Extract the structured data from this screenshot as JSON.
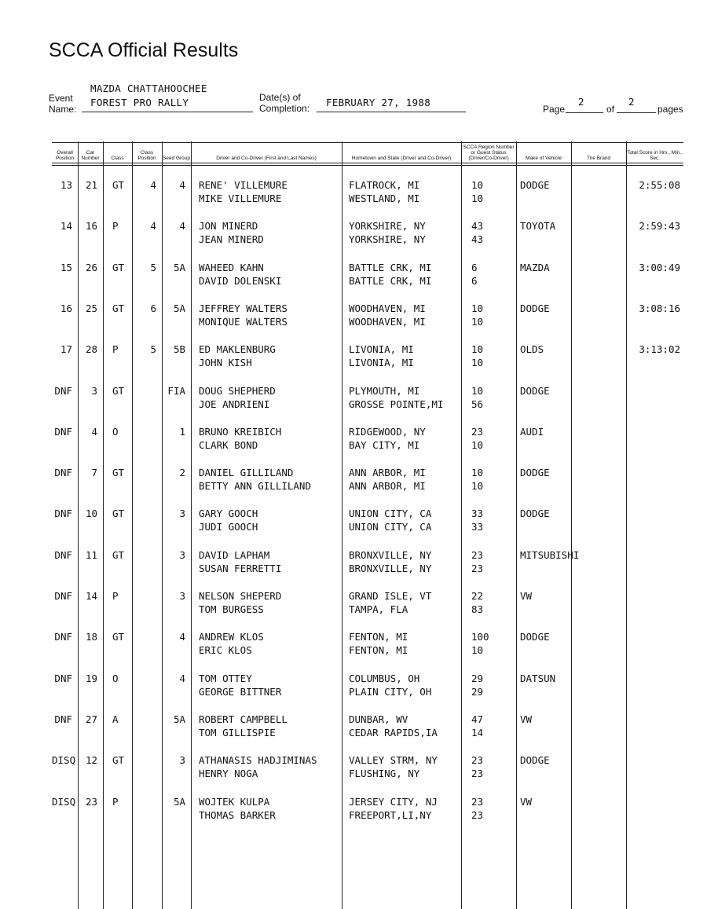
{
  "title": "SCCA Official Results",
  "event": {
    "name_label_1": "Event",
    "name_label_2": "Name:",
    "name_line1": "MAZDA CHATTAHOOCHEE",
    "name_line2": "FOREST PRO RALLY",
    "date_label_1": "Date(s) of",
    "date_label_2": "Completion:",
    "date": "FEBRUARY 27, 1988",
    "page_label": "Page",
    "of_label": "of",
    "pages_label": "pages",
    "page": "2",
    "total_pages": "2"
  },
  "columns": [
    "Overall Position",
    "Car Number",
    "Class",
    "Class Position",
    "Seed Group",
    "Driver and Co-Driver (First and Last Names)",
    "Hometown and State (Driver and Co-Driver)",
    "SCCA Region Number or Guest Status (Driver/Co-Driver)",
    "Make of Vehicle",
    "Tire Brand",
    "Total Score in Hrs., Min., Sec."
  ],
  "rows": [
    {
      "pos": "13",
      "car": "21",
      "cls": "GT",
      "cpos": "4",
      "seed": "4",
      "d1": "RENE' VILLEMURE",
      "d2": "MIKE VILLEMURE",
      "h1": "FLATROCK, MI",
      "h2": "WESTLAND, MI",
      "r1": "10",
      "r2": "10",
      "make": "DODGE",
      "tire": "",
      "score": "2:55:08"
    },
    {
      "pos": "14",
      "car": "16",
      "cls": "P",
      "cpos": "4",
      "seed": "4",
      "d1": "JON MINERD",
      "d2": "JEAN MINERD",
      "h1": "YORKSHIRE, NY",
      "h2": "YORKSHIRE, NY",
      "r1": "43",
      "r2": "43",
      "make": "TOYOTA",
      "tire": "",
      "score": "2:59:43"
    },
    {
      "pos": "15",
      "car": "26",
      "cls": "GT",
      "cpos": "5",
      "seed": "5A",
      "d1": "WAHEED KAHN",
      "d2": "DAVID DOLENSKI",
      "h1": "BATTLE CRK, MI",
      "h2": "BATTLE CRK, MI",
      "r1": "6",
      "r2": "6",
      "make": "MAZDA",
      "tire": "",
      "score": "3:00:49"
    },
    {
      "pos": "16",
      "car": "25",
      "cls": "GT",
      "cpos": "6",
      "seed": "5A",
      "d1": "JEFFREY WALTERS",
      "d2": "MONIQUE WALTERS",
      "h1": "WOODHAVEN, MI",
      "h2": "WOODHAVEN, MI",
      "r1": "10",
      "r2": "10",
      "make": "DODGE",
      "tire": "",
      "score": "3:08:16"
    },
    {
      "pos": "17",
      "car": "28",
      "cls": "P",
      "cpos": "5",
      "seed": "5B",
      "d1": "ED MAKLENBURG",
      "d2": "JOHN KISH",
      "h1": "LIVONIA, MI",
      "h2": "LIVONIA, MI",
      "r1": "10",
      "r2": "10",
      "make": "OLDS",
      "tire": "",
      "score": "3:13:02"
    },
    {
      "pos": "DNF",
      "car": "3",
      "cls": "GT",
      "cpos": "",
      "seed": "FIA",
      "d1": "DOUG SHEPHERD",
      "d2": "JOE ANDRIENI",
      "h1": "PLYMOUTH, MI",
      "h2": "GROSSE POINTE,MI",
      "r1": "10",
      "r2": "56",
      "make": "DODGE",
      "tire": "",
      "score": ""
    },
    {
      "pos": "DNF",
      "car": "4",
      "cls": "O",
      "cpos": "",
      "seed": "1",
      "d1": "BRUNO KREIBICH",
      "d2": "CLARK BOND",
      "h1": "RIDGEWOOD, NY",
      "h2": "BAY CITY, MI",
      "r1": "23",
      "r2": "10",
      "make": "AUDI",
      "tire": "",
      "score": ""
    },
    {
      "pos": "DNF",
      "car": "7",
      "cls": "GT",
      "cpos": "",
      "seed": "2",
      "d1": "DANIEL GILLILAND",
      "d2": "BETTY ANN GILLILAND",
      "h1": "ANN ARBOR, MI",
      "h2": "ANN ARBOR, MI",
      "r1": "10",
      "r2": "10",
      "make": "DODGE",
      "tire": "",
      "score": ""
    },
    {
      "pos": "DNF",
      "car": "10",
      "cls": "GT",
      "cpos": "",
      "seed": "3",
      "d1": "GARY GOOCH",
      "d2": "JUDI GOOCH",
      "h1": "UNION CITY, CA",
      "h2": "UNION CITY, CA",
      "r1": "33",
      "r2": "33",
      "make": "DODGE",
      "tire": "",
      "score": ""
    },
    {
      "pos": "DNF",
      "car": "11",
      "cls": "GT",
      "cpos": "",
      "seed": "3",
      "d1": "DAVID LAPHAM",
      "d2": "SUSAN FERRETTI",
      "h1": "BRONXVILLE, NY",
      "h2": "BRONXVILLE, NY",
      "r1": "23",
      "r2": "23",
      "make": "MITSUBISHI",
      "tire": "",
      "score": ""
    },
    {
      "pos": "DNF",
      "car": "14",
      "cls": "P",
      "cpos": "",
      "seed": "3",
      "d1": "NELSON SHEPERD",
      "d2": "TOM BURGESS",
      "h1": "GRAND ISLE, VT",
      "h2": "TAMPA, FLA",
      "r1": "22",
      "r2": "83",
      "make": "VW",
      "tire": "",
      "score": ""
    },
    {
      "pos": "DNF",
      "car": "18",
      "cls": "GT",
      "cpos": "",
      "seed": "4",
      "d1": "ANDREW KLOS",
      "d2": "ERIC KLOS",
      "h1": "FENTON, MI",
      "h2": "FENTON, MI",
      "r1": "100",
      "r2": "10",
      "make": "DODGE",
      "tire": "",
      "score": ""
    },
    {
      "pos": "DNF",
      "car": "19",
      "cls": "O",
      "cpos": "",
      "seed": "4",
      "d1": "TOM OTTEY",
      "d2": "GEORGE BITTNER",
      "h1": "COLUMBUS, OH",
      "h2": "PLAIN CITY, OH",
      "r1": "29",
      "r2": "29",
      "make": "DATSUN",
      "tire": "",
      "score": ""
    },
    {
      "pos": "DNF",
      "car": "27",
      "cls": "A",
      "cpos": "",
      "seed": "5A",
      "d1": "ROBERT CAMPBELL",
      "d2": "TOM GILLISPIE",
      "h1": "DUNBAR, WV",
      "h2": "CEDAR RAPIDS,IA",
      "r1": "47",
      "r2": "14",
      "make": "VW",
      "tire": "",
      "score": ""
    },
    {
      "pos": "DISQ",
      "car": "12",
      "cls": "GT",
      "cpos": "",
      "seed": "3",
      "d1": "ATHANASIS HADJIMINAS",
      "d2": "HENRY NOGA",
      "h1": "VALLEY STRM, NY",
      "h2": "FLUSHING, NY",
      "r1": "23",
      "r2": "23",
      "make": "DODGE",
      "tire": "",
      "score": ""
    },
    {
      "pos": "DISQ",
      "car": "23",
      "cls": "P",
      "cpos": "",
      "seed": "5A",
      "d1": "WOJTEK KULPA",
      "d2": "THOMAS BARKER",
      "h1": "JERSEY CITY, NJ",
      "h2": "FREEPORT,LI,NY",
      "r1": "23",
      "r2": "23",
      "make": "VW",
      "tire": "",
      "score": ""
    }
  ]
}
